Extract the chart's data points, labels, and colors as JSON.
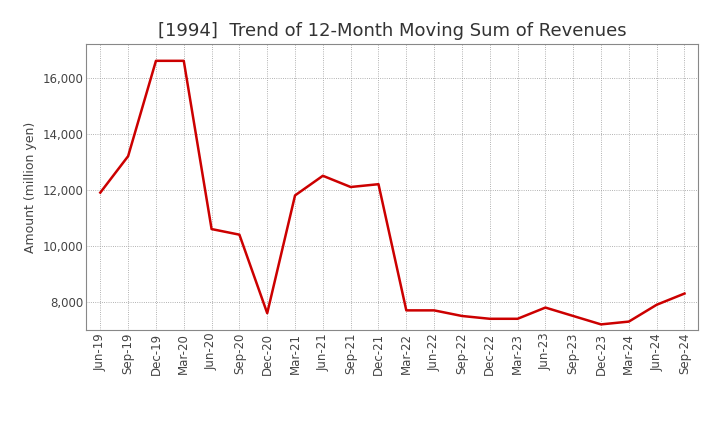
{
  "title": "[1994]  Trend of 12-Month Moving Sum of Revenues",
  "ylabel": "Amount (million yen)",
  "line_color": "#CC0000",
  "background_color": "#FFFFFF",
  "grid_color": "#999999",
  "xlabels": [
    "Jun-19",
    "Sep-19",
    "Dec-19",
    "Mar-20",
    "Jun-20",
    "Sep-20",
    "Dec-20",
    "Mar-21",
    "Jun-21",
    "Sep-21",
    "Dec-21",
    "Mar-22",
    "Jun-22",
    "Sep-22",
    "Dec-22",
    "Mar-23",
    "Jun-23",
    "Sep-23",
    "Dec-23",
    "Mar-24",
    "Jun-24",
    "Sep-24"
  ],
  "values": [
    11900,
    13200,
    16600,
    16600,
    10600,
    10400,
    7600,
    11800,
    12500,
    12100,
    12200,
    7700,
    7700,
    7500,
    7400,
    7400,
    7800,
    7500,
    7200,
    7300,
    7900,
    8300
  ],
  "ylim": [
    7000,
    17200
  ],
  "yticks": [
    8000,
    10000,
    12000,
    14000,
    16000
  ],
  "title_fontsize": 13,
  "axis_fontsize": 9,
  "tick_fontsize": 8.5
}
